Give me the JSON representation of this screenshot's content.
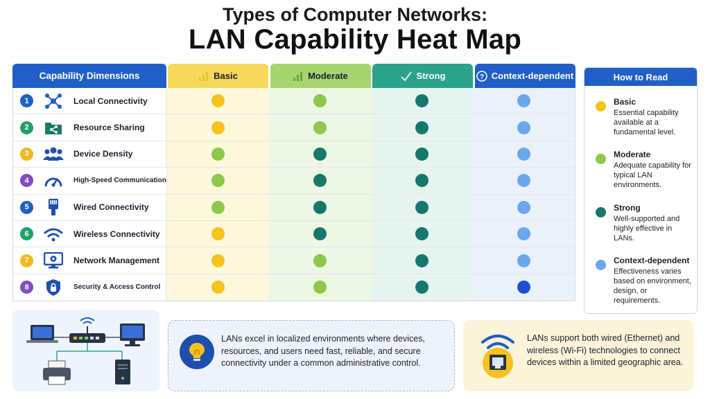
{
  "title": {
    "line1": "Types of Computer Networks:",
    "line2": "LAN Capability Heat Map"
  },
  "table": {
    "dimensions_header": "Capability Dimensions",
    "columns": [
      {
        "label": "Basic",
        "bg": "#f6d95a",
        "color": "#1b1f2a",
        "icon": "basic-bars-icon"
      },
      {
        "label": "Moderate",
        "bg": "#a6d46f",
        "color": "#1b1f2a",
        "icon": "moderate-bars-icon"
      },
      {
        "label": "Strong",
        "bg": "#2aa38a",
        "color": "#ffffff",
        "icon": "strong-check-icon"
      },
      {
        "label": "Context-dependent",
        "bg": "#1f5fc7",
        "color": "#ffffff",
        "icon": "question-icon"
      }
    ],
    "rows": [
      {
        "num": "1",
        "label": "Local Connectivity",
        "num_color": "#1f5fc7",
        "icon": "network-nodes-icon",
        "levels": [
          "basic",
          "moderate",
          "strong",
          "context"
        ]
      },
      {
        "num": "2",
        "label": "Resource Sharing",
        "num_color": "#20a06b",
        "icon": "shared-folder-icon",
        "levels": [
          "basic",
          "moderate",
          "strong",
          "context"
        ]
      },
      {
        "num": "3",
        "label": "Device Density",
        "num_color": "#f2b81e",
        "icon": "users-group-icon",
        "levels": [
          "moderate",
          "strong",
          "strong",
          "context"
        ]
      },
      {
        "num": "4",
        "label": "High-Speed Communication",
        "num_color": "#7d4fc0",
        "icon": "speedometer-icon",
        "levels": [
          "moderate",
          "strong",
          "strong",
          "context"
        ]
      },
      {
        "num": "5",
        "label": "Wired Connectivity",
        "num_color": "#1f5fc7",
        "icon": "ethernet-plug-icon",
        "levels": [
          "moderate",
          "strong",
          "strong",
          "context"
        ]
      },
      {
        "num": "6",
        "label": "Wireless Connectivity",
        "num_color": "#20a06b",
        "icon": "wifi-icon",
        "levels": [
          "basic",
          "strong",
          "strong",
          "context"
        ]
      },
      {
        "num": "7",
        "label": "Network Management",
        "num_color": "#f2b81e",
        "icon": "monitor-settings-icon",
        "levels": [
          "basic",
          "moderate",
          "strong",
          "context"
        ]
      },
      {
        "num": "8",
        "label": "Security & Access Control",
        "num_color": "#7d4fc0",
        "icon": "shield-lock-icon",
        "levels": [
          "basic",
          "moderate",
          "strong",
          "context-strong"
        ]
      }
    ]
  },
  "dot_colors": {
    "basic": "#f6c21c",
    "moderate": "#8cc84b",
    "strong": "#16786a",
    "context": "#6ba7ec",
    "context-strong": "#1a4fd0"
  },
  "legend": {
    "title": "How to Read",
    "items": [
      {
        "title": "Basic",
        "desc": "Essential capability available at a fundamental level.",
        "color": "#f6c21c"
      },
      {
        "title": "Moderate",
        "desc": "Adequate capability for typical LAN environments.",
        "color": "#8cc84b"
      },
      {
        "title": "Strong",
        "desc": "Well-supported and highly effective in LANs.",
        "color": "#16786a"
      },
      {
        "title": "Context-dependent",
        "desc": "Effectiveness varies based on environment, design, or requirements.",
        "color": "#6ba7ec"
      }
    ]
  },
  "bottom": {
    "info1": "LANs excel in localized environments where devices, resources, and users need fast, reliable, and secure connectivity under a common administrative control.",
    "info2": "LANs support both wired (Ethernet) and wireless (Wi-Fi) technologies to connect devices within a limited geographic area."
  }
}
